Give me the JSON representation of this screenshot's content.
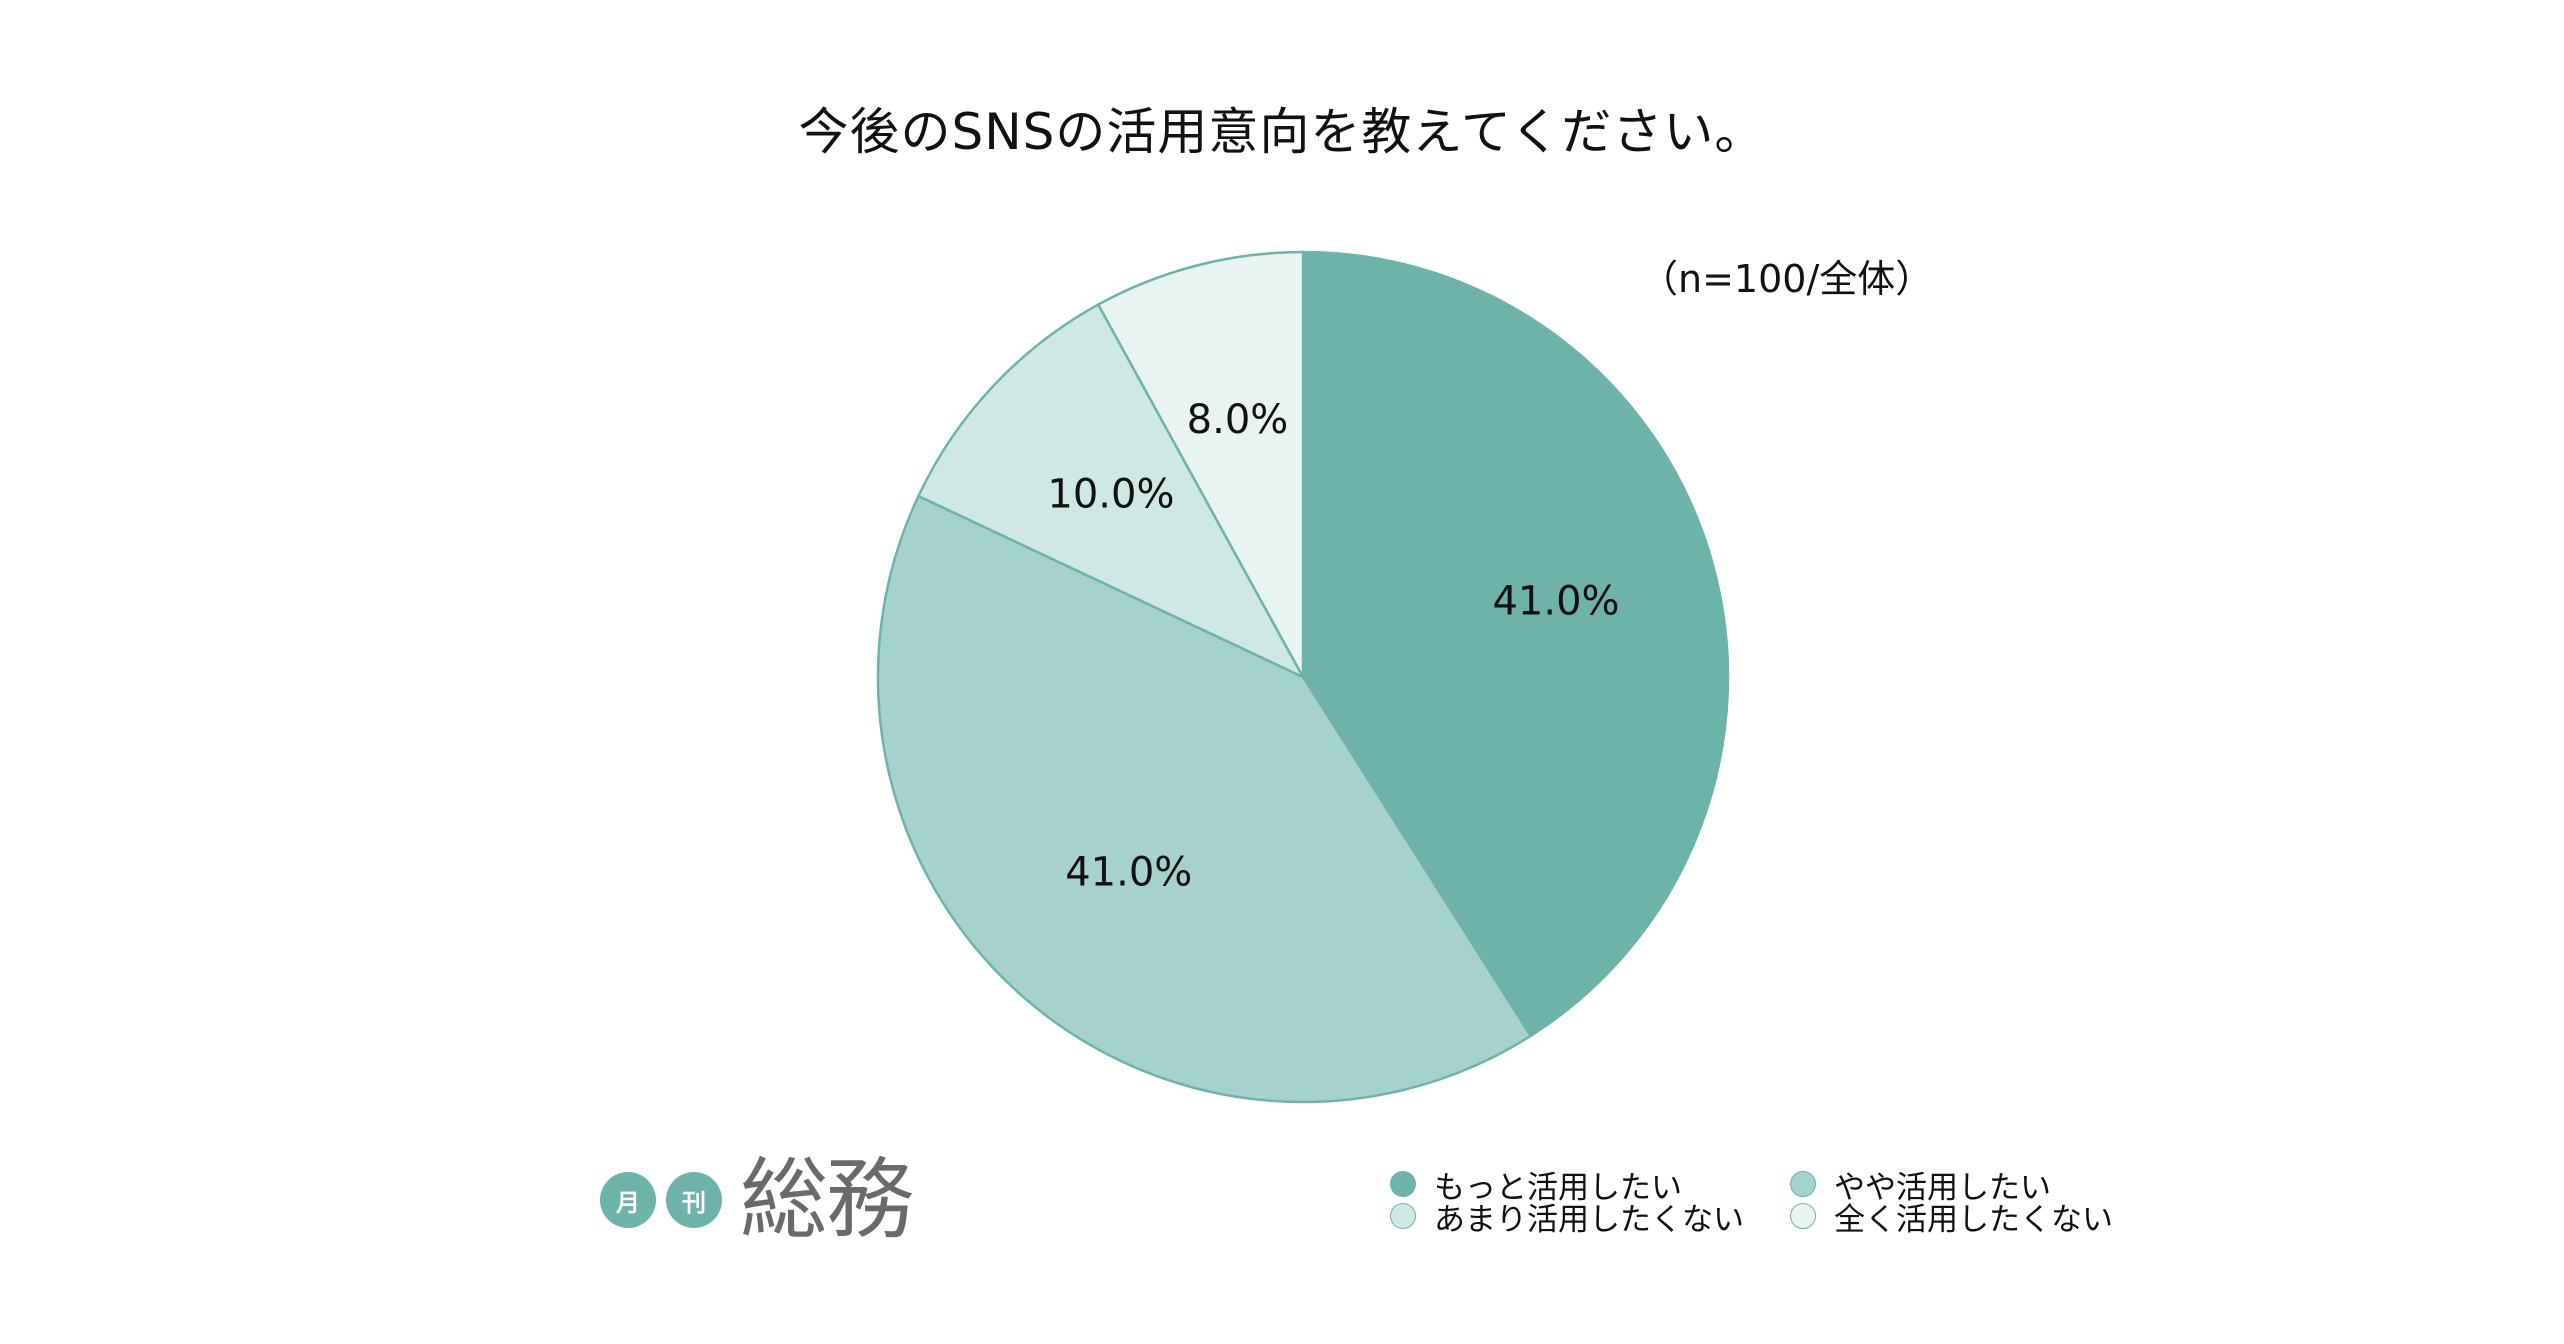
{
  "chart_data": {
    "type": "pie",
    "title": "今後のSNSの活用意向を教えてください。",
    "note": "（n=100/全体）",
    "categories": [
      "もっと活用したい",
      "やや活用したい",
      "あまり活用したくない",
      "全く活用したくない"
    ],
    "values": [
      41.0,
      41.0,
      10.0,
      8.0
    ],
    "value_labels": [
      "41.0%",
      "41.0%",
      "10.0%",
      "8.0%"
    ],
    "colors": [
      "#6db3aa",
      "#a5d2cc",
      "#cee8e4",
      "#e8f4f2"
    ],
    "stroke_color": "#6db3aa",
    "start_angle": "12 o'clock",
    "direction": "clockwise",
    "legend_position": "bottom-right"
  },
  "logo": {
    "badge_1": "月",
    "badge_2": "刊",
    "word": "総務",
    "color": "#6db3aa"
  }
}
